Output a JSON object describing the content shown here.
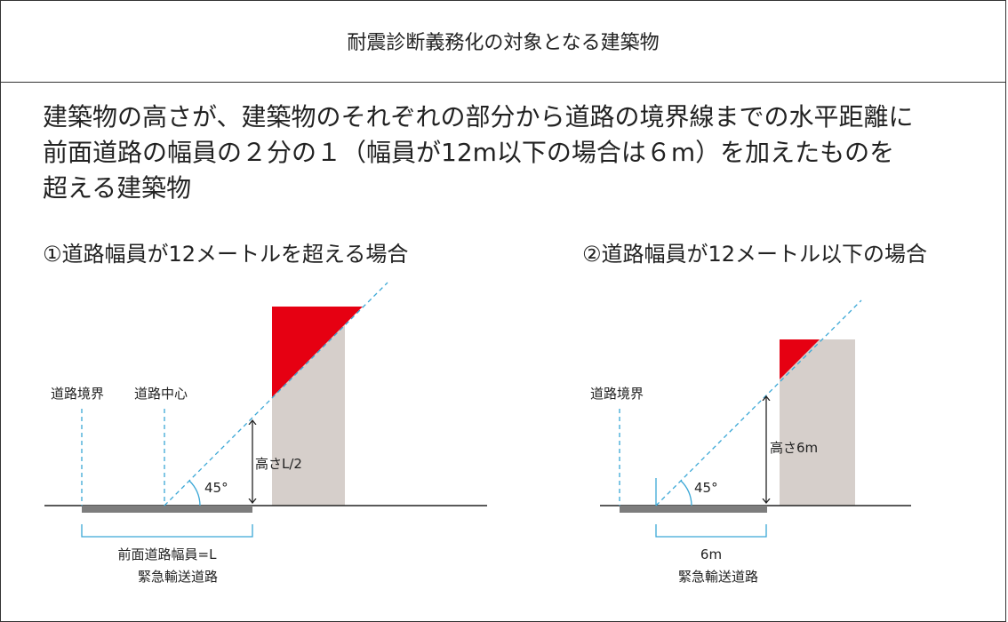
{
  "header": {
    "title": "耐震診断義務化の対象となる建築物"
  },
  "description": {
    "lines": [
      "建築物の高さが、建築物のそれぞれの部分から道路の境界線までの水平距離に",
      "前面道路の幅員の２分の１（幅員が12m以下の場合は６m）を加えたものを",
      "超える建築物"
    ]
  },
  "diagram_left": {
    "title": "①道路幅員が12メートルを超える場合",
    "boundary_label": "道路境界",
    "center_label": "道路中心",
    "angle_label": "45°",
    "height_label": "高さL/2",
    "width_label": "前面道路幅員=L",
    "road_label": "緊急輸送道路"
  },
  "diagram_right": {
    "title": "②道路幅員が12メートル以下の場合",
    "boundary_label": "道路境界",
    "angle_label": "45°",
    "height_label": "高さ6m",
    "width_label": "6m",
    "road_label": "緊急輸送道路"
  },
  "colors": {
    "building": "#d6cfcb",
    "exceed": "#e60012",
    "guide": "#3aa7d6",
    "road": "#7d7d7d",
    "line": "#222222"
  }
}
